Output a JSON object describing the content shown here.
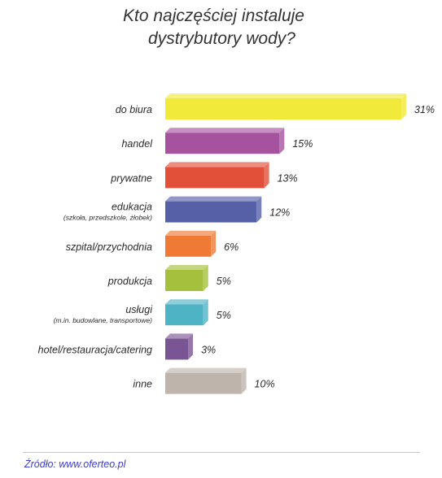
{
  "title": {
    "line1": "Kto najczęściej instaluje",
    "line2": "dystrybutory wody?"
  },
  "source": "Źródło: www.oferteo.pl",
  "chart_data": {
    "type": "bar",
    "orientation": "horizontal",
    "style": "3d",
    "categories": [
      {
        "label": "do biura",
        "sublabel": ""
      },
      {
        "label": "handel",
        "sublabel": ""
      },
      {
        "label": "prywatne",
        "sublabel": ""
      },
      {
        "label": "edukacja",
        "sublabel": "(szkoła, przedszkole, żłobek)"
      },
      {
        "label": "szpital/przychodnia",
        "sublabel": ""
      },
      {
        "label": "produkcja",
        "sublabel": ""
      },
      {
        "label": "usługi",
        "sublabel": "(m.in. budowlane, transportowe)"
      },
      {
        "label": "hotel/restauracja/catering",
        "sublabel": ""
      },
      {
        "label": "inne",
        "sublabel": ""
      }
    ],
    "values": [
      31,
      15,
      13,
      12,
      6,
      5,
      5,
      3,
      10
    ],
    "value_labels": [
      "31%",
      "15%",
      "13%",
      "12%",
      "6%",
      "5%",
      "5%",
      "3%",
      "10%"
    ],
    "colors": [
      "#f2ea3a",
      "#a5539f",
      "#e2503a",
      "#5560a6",
      "#ee7a36",
      "#a4c03d",
      "#4fb3c6",
      "#7a5593",
      "#bfb4ac"
    ],
    "xlim": [
      0,
      31
    ],
    "grid": false,
    "legend": "none"
  }
}
